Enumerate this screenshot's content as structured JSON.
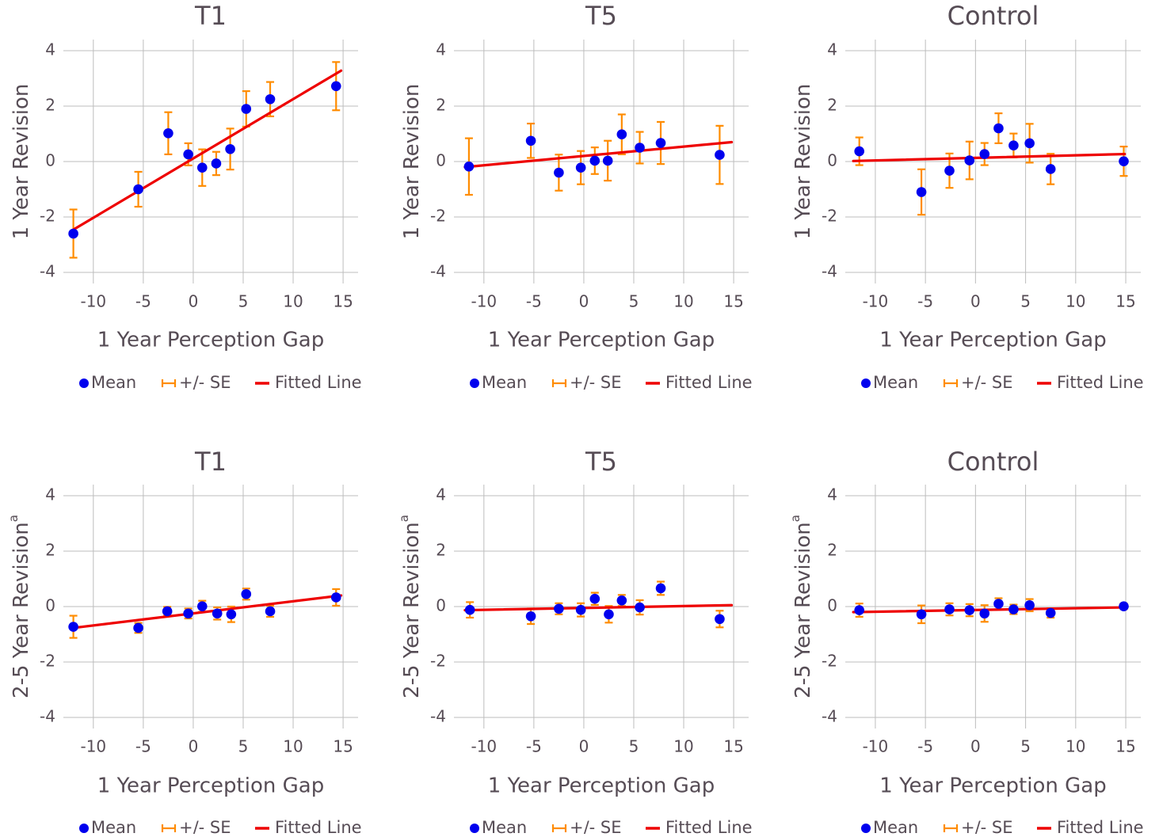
{
  "legend": {
    "mean_label": "Mean",
    "se_label": "+/- SE",
    "fit_label": "Fitted Line"
  },
  "colors": {
    "mean": "#0000ee",
    "se": "#ff8c00",
    "fit": "#ee0000",
    "grid": "#bdbdbd",
    "text": "#564c55"
  },
  "chart_data": [
    {
      "type": "scatter",
      "title": "T1",
      "xlabel": "1 Year Perception Gap",
      "ylabel": "1 Year Revision",
      "xlim": [
        -13,
        16.5
      ],
      "ylim": [
        -4.4,
        4.4
      ],
      "xticks": [
        -10,
        -5,
        0,
        5,
        10,
        15
      ],
      "yticks": [
        -4,
        -2,
        0,
        2,
        4
      ],
      "points": [
        {
          "x": -12.0,
          "y": -2.6,
          "se": 0.87
        },
        {
          "x": -5.5,
          "y": -1.0,
          "se": 0.63
        },
        {
          "x": -2.5,
          "y": 1.02,
          "se": 0.76
        },
        {
          "x": -0.5,
          "y": 0.26,
          "se": 0.4
        },
        {
          "x": 0.9,
          "y": -0.22,
          "se": 0.66
        },
        {
          "x": 2.3,
          "y": -0.07,
          "se": 0.42
        },
        {
          "x": 3.7,
          "y": 0.45,
          "se": 0.74
        },
        {
          "x": 5.3,
          "y": 1.9,
          "se": 0.64
        },
        {
          "x": 7.7,
          "y": 2.25,
          "se": 0.62
        },
        {
          "x": 14.3,
          "y": 2.72,
          "se": 0.87
        }
      ],
      "fit": {
        "x": [
          -12.2,
          14.8
        ],
        "y": [
          -2.5,
          3.28
        ]
      }
    },
    {
      "type": "scatter",
      "title": "T5",
      "xlabel": "1 Year Perception Gap",
      "ylabel": "1 Year Revision",
      "xlim": [
        -13,
        16.5
      ],
      "ylim": [
        -4.4,
        4.4
      ],
      "xticks": [
        -10,
        -5,
        0,
        5,
        10,
        15
      ],
      "yticks": [
        -4,
        -2,
        0,
        2,
        4
      ],
      "points": [
        {
          "x": -11.5,
          "y": -0.18,
          "se": 1.02
        },
        {
          "x": -5.3,
          "y": 0.75,
          "se": 0.62
        },
        {
          "x": -2.5,
          "y": -0.4,
          "se": 0.65
        },
        {
          "x": -0.3,
          "y": -0.22,
          "se": 0.6
        },
        {
          "x": 1.1,
          "y": 0.03,
          "se": 0.48
        },
        {
          "x": 2.4,
          "y": 0.03,
          "se": 0.72
        },
        {
          "x": 3.8,
          "y": 0.98,
          "se": 0.72
        },
        {
          "x": 5.6,
          "y": 0.5,
          "se": 0.57
        },
        {
          "x": 7.7,
          "y": 0.67,
          "se": 0.76
        },
        {
          "x": 13.6,
          "y": 0.24,
          "se": 1.05
        }
      ],
      "fit": {
        "x": [
          -11.9,
          14.8
        ],
        "y": [
          -0.2,
          0.7
        ]
      }
    },
    {
      "type": "scatter",
      "title": "Control",
      "xlabel": "1 Year Perception Gap",
      "ylabel": "1 Year Revision",
      "xlim": [
        -13,
        16.5
      ],
      "ylim": [
        -4.4,
        4.4
      ],
      "xticks": [
        -10,
        -5,
        0,
        5,
        10,
        15
      ],
      "yticks": [
        -4,
        -2,
        0,
        2,
        4
      ],
      "points": [
        {
          "x": -11.6,
          "y": 0.37,
          "se": 0.5
        },
        {
          "x": -5.4,
          "y": -1.1,
          "se": 0.82
        },
        {
          "x": -2.6,
          "y": -0.33,
          "se": 0.62
        },
        {
          "x": -0.6,
          "y": 0.04,
          "se": 0.68
        },
        {
          "x": 0.9,
          "y": 0.27,
          "se": 0.4
        },
        {
          "x": 2.3,
          "y": 1.2,
          "se": 0.54
        },
        {
          "x": 3.8,
          "y": 0.58,
          "se": 0.43
        },
        {
          "x": 5.4,
          "y": 0.66,
          "se": 0.7
        },
        {
          "x": 7.5,
          "y": -0.27,
          "se": 0.55
        },
        {
          "x": 14.8,
          "y": 0.01,
          "se": 0.53
        }
      ],
      "fit": {
        "x": [
          -12.2,
          14.9
        ],
        "y": [
          0.02,
          0.27
        ]
      }
    },
    {
      "type": "scatter",
      "title": "T1",
      "xlabel": "1 Year Perception Gap",
      "ylabel": "2-5 Year Revision",
      "ylabel_sup": "a",
      "xlim": [
        -13,
        16.5
      ],
      "ylim": [
        -4.4,
        4.4
      ],
      "xticks": [
        -10,
        -5,
        0,
        5,
        10,
        15
      ],
      "yticks": [
        -4,
        -2,
        0,
        2,
        4
      ],
      "points": [
        {
          "x": -12.0,
          "y": -0.73,
          "se": 0.4
        },
        {
          "x": -5.5,
          "y": -0.77,
          "se": 0.18
        },
        {
          "x": -2.6,
          "y": -0.17,
          "se": 0.16
        },
        {
          "x": -0.5,
          "y": -0.25,
          "se": 0.18
        },
        {
          "x": 0.9,
          "y": 0.01,
          "se": 0.2
        },
        {
          "x": 2.4,
          "y": -0.25,
          "se": 0.22
        },
        {
          "x": 3.8,
          "y": -0.28,
          "se": 0.28
        },
        {
          "x": 5.3,
          "y": 0.45,
          "se": 0.2
        },
        {
          "x": 7.7,
          "y": -0.17,
          "se": 0.2
        },
        {
          "x": 14.3,
          "y": 0.33,
          "se": 0.3
        }
      ],
      "fit": {
        "x": [
          -12.0,
          14.8
        ],
        "y": [
          -0.77,
          0.4
        ]
      }
    },
    {
      "type": "scatter",
      "title": "T5",
      "xlabel": "1 Year Perception Gap",
      "ylabel": "2-5 Year Revision",
      "ylabel_sup": "a",
      "xlim": [
        -13,
        16.5
      ],
      "ylim": [
        -4.4,
        4.4
      ],
      "xticks": [
        -10,
        -5,
        0,
        5,
        10,
        15
      ],
      "yticks": [
        -4,
        -2,
        0,
        2,
        4
      ],
      "points": [
        {
          "x": -11.4,
          "y": -0.12,
          "se": 0.28
        },
        {
          "x": -5.3,
          "y": -0.35,
          "se": 0.28
        },
        {
          "x": -2.5,
          "y": -0.08,
          "se": 0.2
        },
        {
          "x": -0.3,
          "y": -0.12,
          "se": 0.24
        },
        {
          "x": 1.1,
          "y": 0.28,
          "se": 0.22
        },
        {
          "x": 2.5,
          "y": -0.28,
          "se": 0.3
        },
        {
          "x": 3.8,
          "y": 0.22,
          "se": 0.2
        },
        {
          "x": 5.6,
          "y": -0.03,
          "se": 0.26
        },
        {
          "x": 7.7,
          "y": 0.66,
          "se": 0.24
        },
        {
          "x": 13.6,
          "y": -0.45,
          "se": 0.3
        }
      ],
      "fit": {
        "x": [
          -11.9,
          14.8
        ],
        "y": [
          -0.13,
          0.05
        ]
      }
    },
    {
      "type": "scatter",
      "title": "Control",
      "xlabel": "1 Year Perception Gap",
      "ylabel": "2-5 Year Revision",
      "ylabel_sup": "a",
      "xlim": [
        -13,
        16.5
      ],
      "ylim": [
        -4.4,
        4.4
      ],
      "xticks": [
        -10,
        -5,
        0,
        5,
        10,
        15
      ],
      "yticks": [
        -4,
        -2,
        0,
        2,
        4
      ],
      "points": [
        {
          "x": -11.6,
          "y": -0.13,
          "se": 0.24
        },
        {
          "x": -5.4,
          "y": -0.28,
          "se": 0.32
        },
        {
          "x": -2.6,
          "y": -0.1,
          "se": 0.22
        },
        {
          "x": -0.6,
          "y": -0.13,
          "se": 0.22
        },
        {
          "x": 0.9,
          "y": -0.25,
          "se": 0.3
        },
        {
          "x": 2.3,
          "y": 0.1,
          "se": 0.2
        },
        {
          "x": 3.8,
          "y": -0.1,
          "se": 0.17
        },
        {
          "x": 5.4,
          "y": 0.05,
          "se": 0.22
        },
        {
          "x": 7.5,
          "y": -0.23,
          "se": 0.17
        },
        {
          "x": 14.8,
          "y": 0.01,
          "se": 0.1
        }
      ],
      "fit": {
        "x": [
          -12.2,
          14.9
        ],
        "y": [
          -0.2,
          -0.03
        ]
      }
    }
  ]
}
